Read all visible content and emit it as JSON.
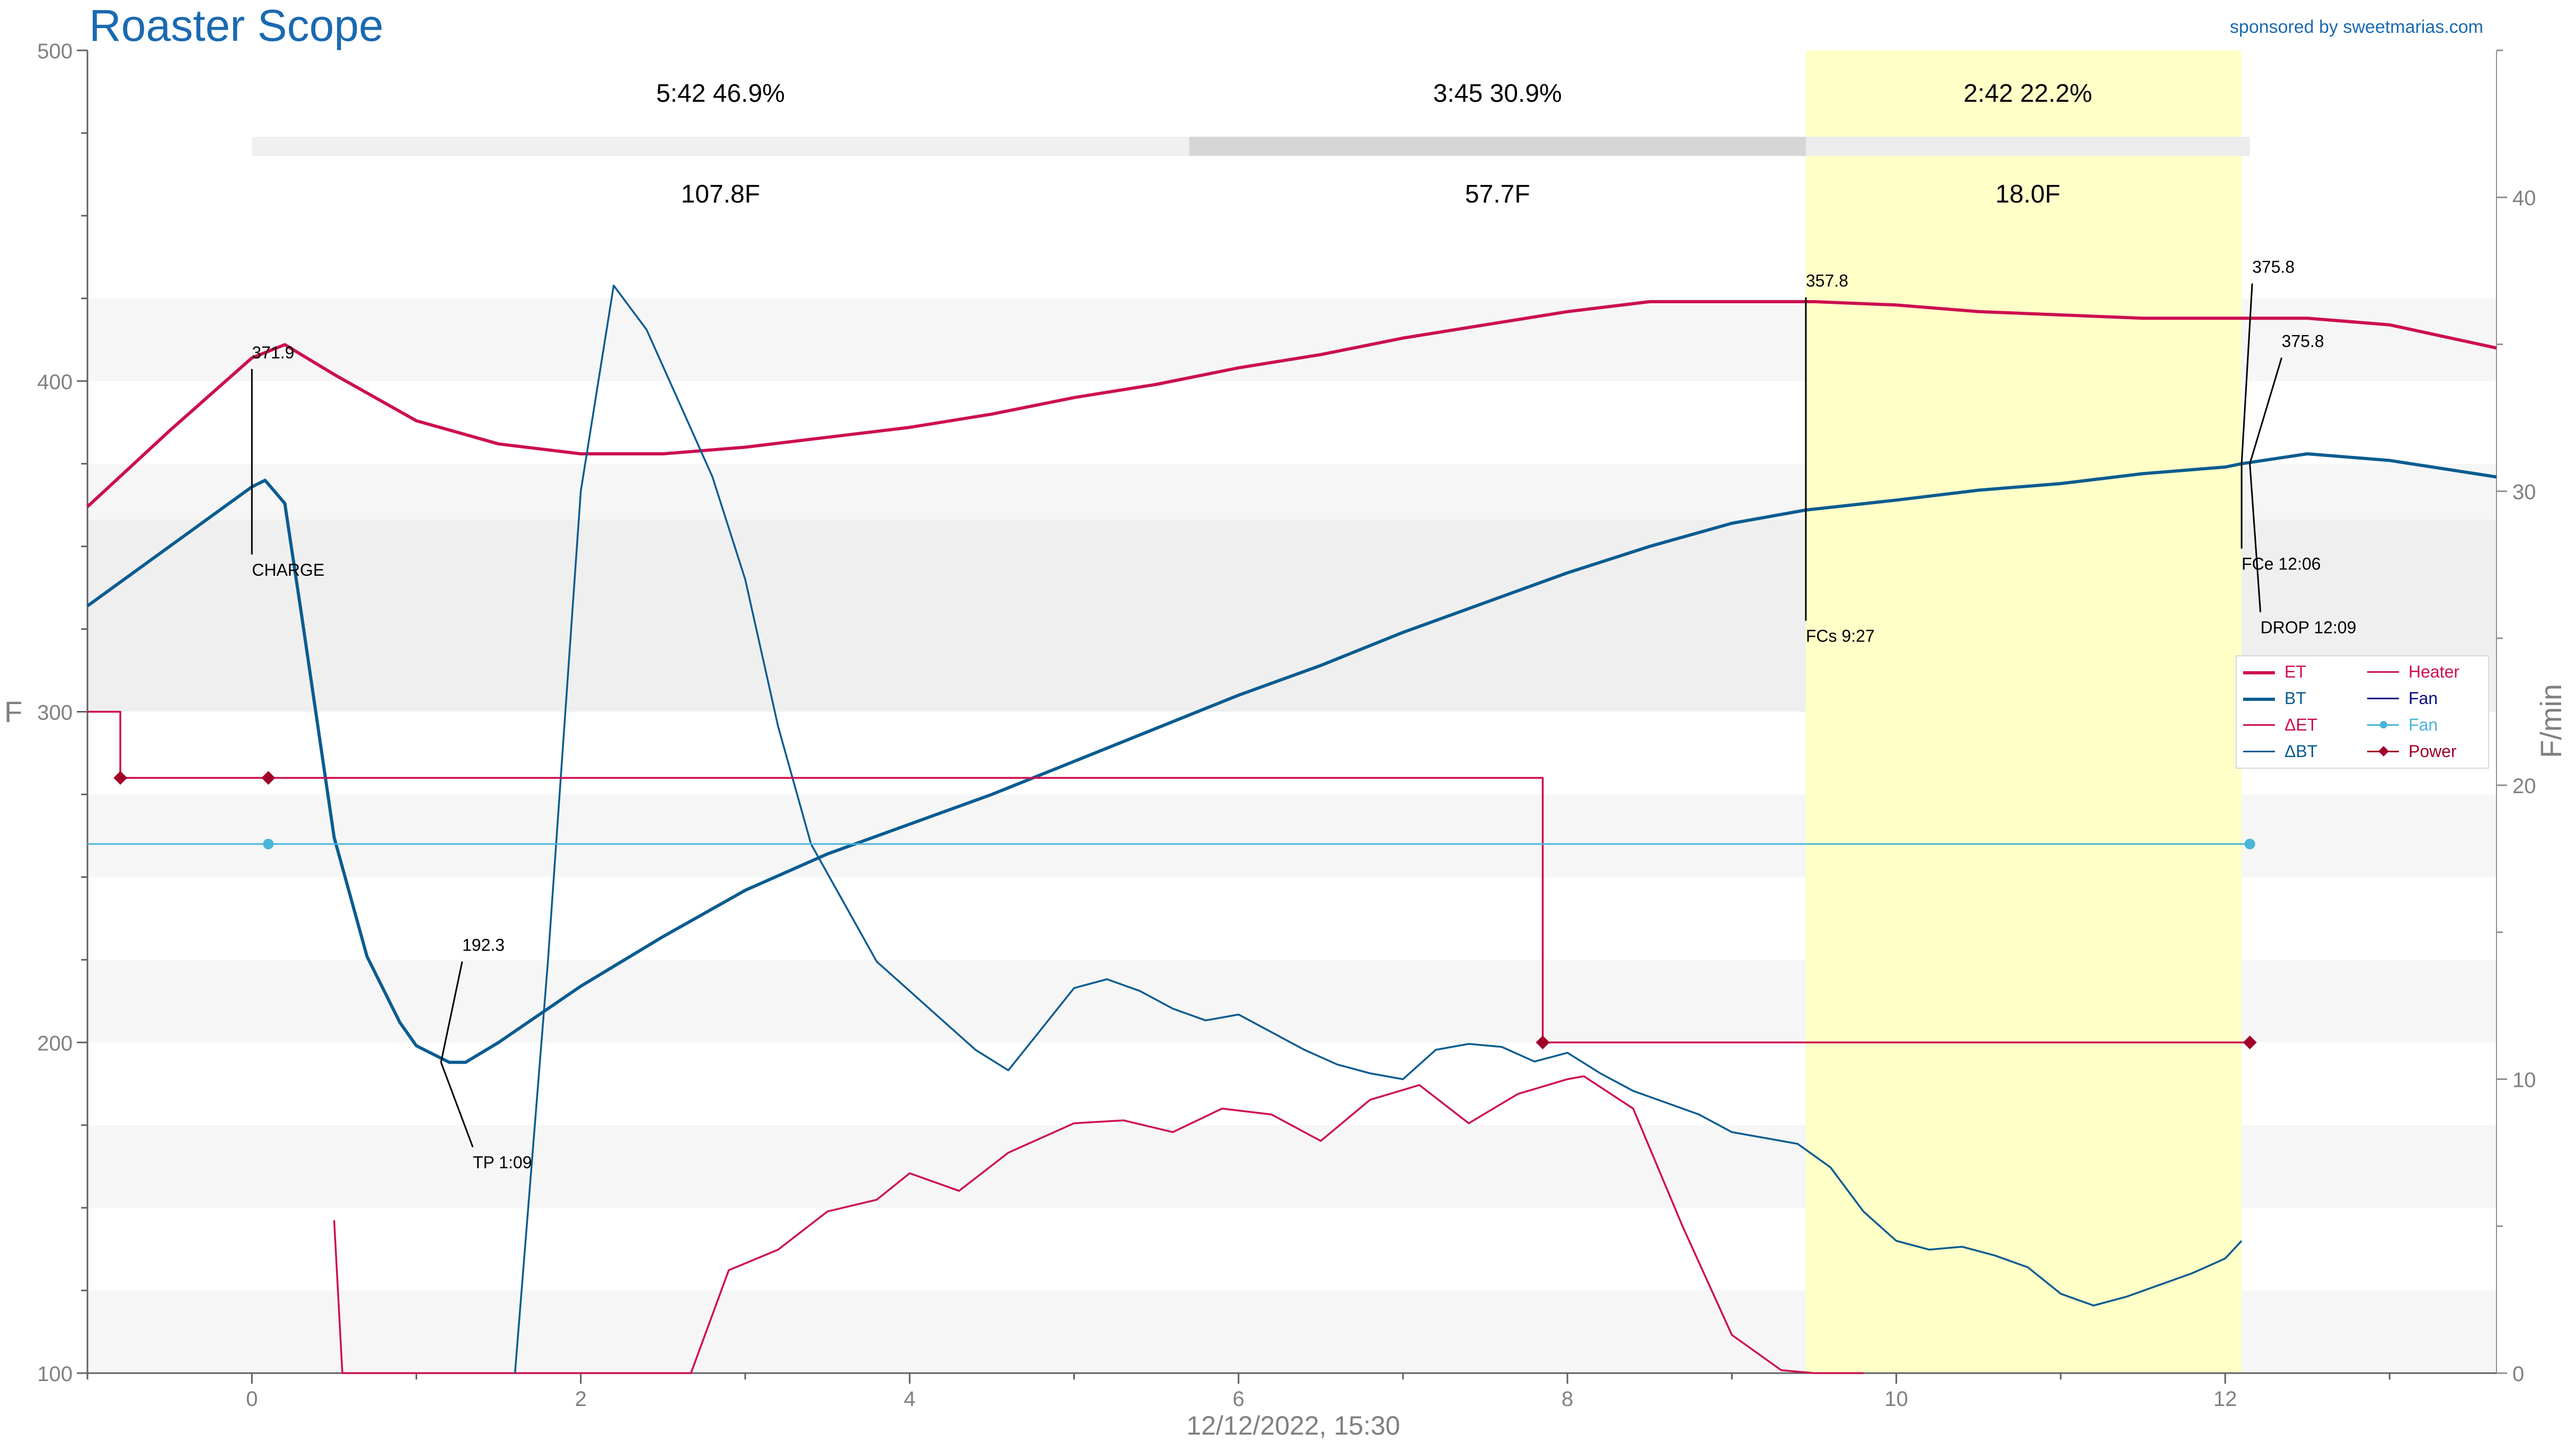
{
  "title": "Roaster Scope",
  "sponsor": "sponsored by sweetmarias.com",
  "colors": {
    "et": "#cc0f50",
    "bt": "#0a5c90",
    "det": "#cc0f50",
    "dbt": "#0a5c90",
    "heater": "#cc0f50",
    "fan_control": "#0a0a80",
    "fan": "#49b5d8",
    "power": "#a0002a",
    "phase_dry": "#f0f0f0",
    "phase_maillard": "#d6d6d6",
    "phase_dev": "#ececec",
    "dev_highlight": "#ffffc8"
  },
  "chart_data": {
    "type": "line",
    "xlabel": "12/12/2022, 15:30",
    "ylabel": "F",
    "y2label": "F/min",
    "xlim": [
      -1.0,
      13.65
    ],
    "ylim": [
      100,
      500
    ],
    "y2lim": [
      0,
      45
    ],
    "xticks": [
      0,
      2,
      4,
      6,
      8,
      10,
      12
    ],
    "yticks": [
      100,
      200,
      300,
      400,
      500
    ],
    "y2ticks": [
      0,
      10,
      20,
      30,
      40
    ],
    "phases": [
      {
        "time": "5:42",
        "pct": "46.9%",
        "delta": "107.8F",
        "start": 0,
        "end": 5.7
      },
      {
        "time": "3:45",
        "pct": "30.9%",
        "delta": "57.7F",
        "start": 5.7,
        "end": 9.45
      },
      {
        "time": "2:42",
        "pct": "22.2%",
        "delta": "18.0F",
        "start": 9.45,
        "end": 12.15
      }
    ],
    "development_window": [
      9.45,
      12.1
    ],
    "series": [
      {
        "name": "ET",
        "axis": "left",
        "x": [
          -1.0,
          -0.5,
          0.0,
          0.2,
          0.5,
          1.0,
          1.5,
          2.0,
          2.5,
          3.0,
          3.5,
          4.0,
          4.5,
          5.0,
          5.5,
          6.0,
          6.5,
          7.0,
          7.5,
          8.0,
          8.5,
          9.0,
          9.5,
          10.0,
          10.5,
          11.0,
          11.5,
          12.0,
          12.5,
          13.0,
          13.65
        ],
        "y": [
          362,
          385,
          407,
          411,
          402,
          388,
          381,
          378,
          378,
          380,
          383,
          386,
          390,
          395,
          399,
          404,
          408,
          413,
          417,
          421,
          424,
          424,
          424,
          423,
          421,
          420,
          419,
          419,
          419,
          417,
          410
        ]
      },
      {
        "name": "BT",
        "axis": "left",
        "x": [
          -1.0,
          -0.5,
          0.0,
          0.08,
          0.2,
          0.3,
          0.5,
          0.7,
          0.9,
          1.0,
          1.2,
          1.3,
          1.5,
          2.0,
          2.5,
          3.0,
          3.5,
          4.0,
          4.5,
          5.0,
          5.5,
          6.0,
          6.5,
          7.0,
          7.5,
          8.0,
          8.5,
          9.0,
          9.45,
          10.0,
          10.5,
          11.0,
          11.5,
          12.0,
          12.1,
          12.5,
          13.0,
          13.65
        ],
        "y": [
          332,
          350,
          368,
          370,
          363,
          330,
          262,
          226,
          206,
          199,
          194,
          194,
          200,
          217,
          232,
          246,
          257,
          266,
          275,
          285,
          295,
          305,
          314,
          324,
          333,
          342,
          350,
          357,
          361,
          364,
          367,
          369,
          372,
          374,
          375,
          378,
          376,
          371
        ]
      },
      {
        "name": "ΔET",
        "axis": "right",
        "x": [
          0.5,
          0.55,
          2.67,
          2.9,
          3.2,
          3.5,
          3.8,
          4.0,
          4.3,
          4.6,
          5.0,
          5.3,
          5.6,
          5.9,
          6.2,
          6.5,
          6.8,
          7.1,
          7.4,
          7.7,
          8.0,
          8.1,
          8.4,
          8.7,
          9.0,
          9.3,
          9.5,
          9.8
        ],
        "y": [
          5.2,
          0,
          0,
          3.5,
          4.2,
          5.5,
          5.9,
          6.8,
          6.2,
          7.5,
          8.5,
          8.6,
          8.2,
          9.0,
          8.8,
          7.9,
          9.3,
          9.8,
          8.5,
          9.5,
          10.0,
          10.1,
          9.0,
          5.0,
          1.3,
          0.1,
          0,
          0
        ]
      },
      {
        "name": "ΔBT",
        "axis": "right",
        "x": [
          1.6,
          1.8,
          2.0,
          2.2,
          2.4,
          2.6,
          2.8,
          3.0,
          3.2,
          3.4,
          3.6,
          3.8,
          4.0,
          4.2,
          4.4,
          4.6,
          4.8,
          5.0,
          5.2,
          5.4,
          5.6,
          5.8,
          6.0,
          6.2,
          6.4,
          6.6,
          6.8,
          7.0,
          7.2,
          7.4,
          7.6,
          7.8,
          8.0,
          8.2,
          8.4,
          8.6,
          8.8,
          9.0,
          9.2,
          9.4,
          9.6,
          9.8,
          10.0,
          10.2,
          10.4,
          10.6,
          10.8,
          11.0,
          11.2,
          11.4,
          11.6,
          11.8,
          12.0,
          12.1
        ],
        "y": [
          0,
          14,
          30,
          37,
          35.5,
          33,
          30.5,
          27,
          22,
          18,
          16,
          14,
          13,
          12,
          11,
          10.3,
          11.7,
          13.1,
          13.4,
          13.0,
          12.4,
          12.0,
          12.2,
          11.6,
          11.0,
          10.5,
          10.2,
          10.0,
          11.0,
          11.2,
          11.1,
          10.6,
          10.9,
          10.2,
          9.6,
          9.2,
          8.8,
          8.2,
          8.0,
          7.8,
          7.0,
          5.5,
          4.5,
          4.2,
          4.3,
          4.0,
          3.6,
          2.7,
          2.3,
          2.6,
          3.0,
          3.4,
          3.9,
          4.5
        ]
      },
      {
        "name": "Heater",
        "axis": "left",
        "step": true,
        "x": [
          -1.0,
          -0.8,
          -0.8,
          7.85,
          7.85,
          12.15
        ],
        "y": [
          300,
          300,
          280,
          280,
          200,
          200
        ]
      },
      {
        "name": "Fan",
        "axis": "left",
        "step": true,
        "x": [
          -1.0,
          12.15
        ],
        "y": [
          260,
          260
        ]
      },
      {
        "name": "Fan",
        "axis": "left",
        "markers": true,
        "x": [
          0.1,
          12.15
        ],
        "y": [
          260,
          260
        ]
      },
      {
        "name": "Power",
        "axis": "left",
        "markers": true,
        "x": [
          -0.8,
          0.1,
          7.85,
          12.15
        ],
        "y": [
          280,
          280,
          200,
          200
        ]
      }
    ],
    "annotations": [
      {
        "label": "CHARGE",
        "value": "371.9",
        "x": 0.0,
        "y": 370
      },
      {
        "label": "TP 1:09",
        "value": "192.3",
        "x": 1.15,
        "y": 194
      },
      {
        "label": "FCs 9:27",
        "value": "357.8",
        "x": 9.45,
        "y": 358
      },
      {
        "label": "FCe 12:06",
        "value": "375.8",
        "x": 12.1,
        "y": 375
      },
      {
        "label": "DROP 12:09",
        "value": "375.8",
        "x": 12.15,
        "y": 375
      }
    ],
    "legend": {
      "placement": "right",
      "entries": [
        {
          "label": "ET",
          "color_key": "et",
          "marker": false
        },
        {
          "label": "BT",
          "color_key": "bt",
          "marker": false
        },
        {
          "label": "ΔET",
          "color_key": "det",
          "marker": false
        },
        {
          "label": "ΔBT",
          "color_key": "dbt",
          "marker": false
        },
        {
          "label": "Heater",
          "color_key": "heater",
          "marker": false
        },
        {
          "label": "Fan",
          "color_key": "fan_control",
          "marker": false
        },
        {
          "label": "Fan",
          "color_key": "fan",
          "marker": "circle"
        },
        {
          "label": "Power",
          "color_key": "power",
          "marker": "diamond"
        }
      ]
    }
  }
}
